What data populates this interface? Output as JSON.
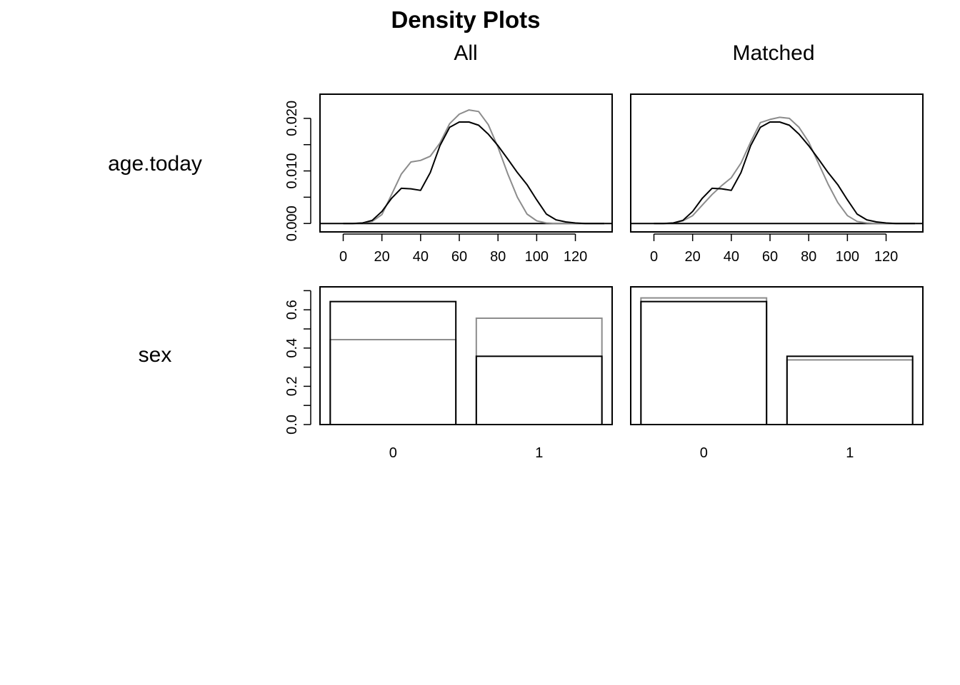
{
  "title": "Density Plots",
  "columns": [
    "All",
    "Matched"
  ],
  "rows": [
    "age.today",
    "sex"
  ],
  "colors": {
    "line_primary": "#000000",
    "line_secondary": "#8c8c8c",
    "axis": "#000000"
  },
  "chart_data": [
    {
      "type": "line",
      "panel": "age.today / All",
      "xlim": [
        -12,
        139
      ],
      "ylim": [
        -0.0016,
        0.0246
      ],
      "x_ticks": [
        0,
        20,
        40,
        60,
        80,
        100,
        120
      ],
      "x_tick_labels": [
        "0",
        "20",
        "40",
        "60",
        "80",
        "100",
        "120"
      ],
      "y_ticks": [
        0,
        0.005,
        0.01,
        0.015,
        0.02
      ],
      "y_tick_labels": [
        "0.000",
        "0.010",
        "0.020"
      ],
      "series": [
        {
          "color": "#8c8c8c",
          "x": [
            0,
            5,
            10,
            15,
            20,
            25,
            30,
            35,
            40,
            45,
            50,
            55,
            60,
            65,
            70,
            75,
            80,
            85,
            90,
            95,
            100,
            105,
            110,
            115,
            120,
            125,
            130,
            135
          ],
          "y": [
            0,
            0,
            0.0001,
            0.0004,
            0.0017,
            0.0055,
            0.0094,
            0.0117,
            0.012,
            0.0128,
            0.0153,
            0.019,
            0.0208,
            0.0216,
            0.0213,
            0.0188,
            0.0145,
            0.0095,
            0.005,
            0.0018,
            0.0005,
            0.0001,
            0,
            0,
            0,
            0,
            0,
            0
          ]
        },
        {
          "color": "#000000",
          "x": [
            0,
            5,
            10,
            15,
            20,
            25,
            30,
            35,
            40,
            45,
            50,
            55,
            60,
            65,
            70,
            75,
            80,
            85,
            90,
            95,
            100,
            105,
            110,
            115,
            120,
            125,
            130,
            135
          ],
          "y": [
            0,
            0,
            0.0001,
            0.0006,
            0.0023,
            0.0048,
            0.0067,
            0.0066,
            0.0063,
            0.0097,
            0.0148,
            0.0183,
            0.0193,
            0.0193,
            0.0187,
            0.017,
            0.0148,
            0.0123,
            0.0097,
            0.0074,
            0.0045,
            0.0018,
            0.0007,
            0.0003,
            0.0001,
            0,
            0,
            0
          ]
        }
      ]
    },
    {
      "type": "line",
      "panel": "age.today / Matched",
      "xlim": [
        -12,
        139
      ],
      "ylim": [
        -0.0016,
        0.0246
      ],
      "x_ticks": [
        0,
        20,
        40,
        60,
        80,
        100,
        120
      ],
      "x_tick_labels": [
        "0",
        "20",
        "40",
        "60",
        "80",
        "100",
        "120"
      ],
      "series": [
        {
          "color": "#8c8c8c",
          "x": [
            0,
            5,
            10,
            15,
            20,
            25,
            30,
            35,
            40,
            45,
            50,
            55,
            60,
            65,
            70,
            75,
            80,
            85,
            90,
            95,
            100,
            105,
            110,
            115,
            120,
            125,
            130,
            135
          ],
          "y": [
            0,
            0,
            0.0001,
            0.0005,
            0.0015,
            0.0035,
            0.0055,
            0.0072,
            0.0087,
            0.0115,
            0.0155,
            0.0192,
            0.0198,
            0.0202,
            0.02,
            0.0183,
            0.0155,
            0.0115,
            0.0075,
            0.004,
            0.0015,
            0.0004,
            0.0001,
            0,
            0,
            0,
            0,
            0
          ]
        },
        {
          "color": "#000000",
          "x": [
            0,
            5,
            10,
            15,
            20,
            25,
            30,
            35,
            40,
            45,
            50,
            55,
            60,
            65,
            70,
            75,
            80,
            85,
            90,
            95,
            100,
            105,
            110,
            115,
            120,
            125,
            130,
            135
          ],
          "y": [
            0,
            0,
            0.0001,
            0.0006,
            0.0023,
            0.0048,
            0.0067,
            0.0066,
            0.0063,
            0.0097,
            0.0148,
            0.0183,
            0.0193,
            0.0193,
            0.0187,
            0.017,
            0.0148,
            0.0123,
            0.0097,
            0.0074,
            0.0045,
            0.0018,
            0.0007,
            0.0003,
            0.0001,
            0,
            0,
            0
          ]
        }
      ]
    },
    {
      "type": "bar",
      "panel": "sex / All",
      "categories": [
        "0",
        "1"
      ],
      "ylim": [
        0,
        0.72
      ],
      "y_ticks": [
        0,
        0.1,
        0.2,
        0.3,
        0.4,
        0.5,
        0.6,
        0.7
      ],
      "y_tick_labels": [
        "0.0",
        "0.2",
        "0.4",
        "0.6"
      ],
      "series": [
        {
          "color": "#8c8c8c",
          "values": [
            0.444,
            0.556
          ]
        },
        {
          "color": "#000000",
          "values": [
            0.643,
            0.357
          ]
        }
      ]
    },
    {
      "type": "bar",
      "panel": "sex / Matched",
      "categories": [
        "0",
        "1"
      ],
      "ylim": [
        0,
        0.72
      ],
      "series": [
        {
          "color": "#8c8c8c",
          "values": [
            0.662,
            0.338
          ]
        },
        {
          "color": "#000000",
          "values": [
            0.643,
            0.357
          ]
        }
      ]
    }
  ]
}
